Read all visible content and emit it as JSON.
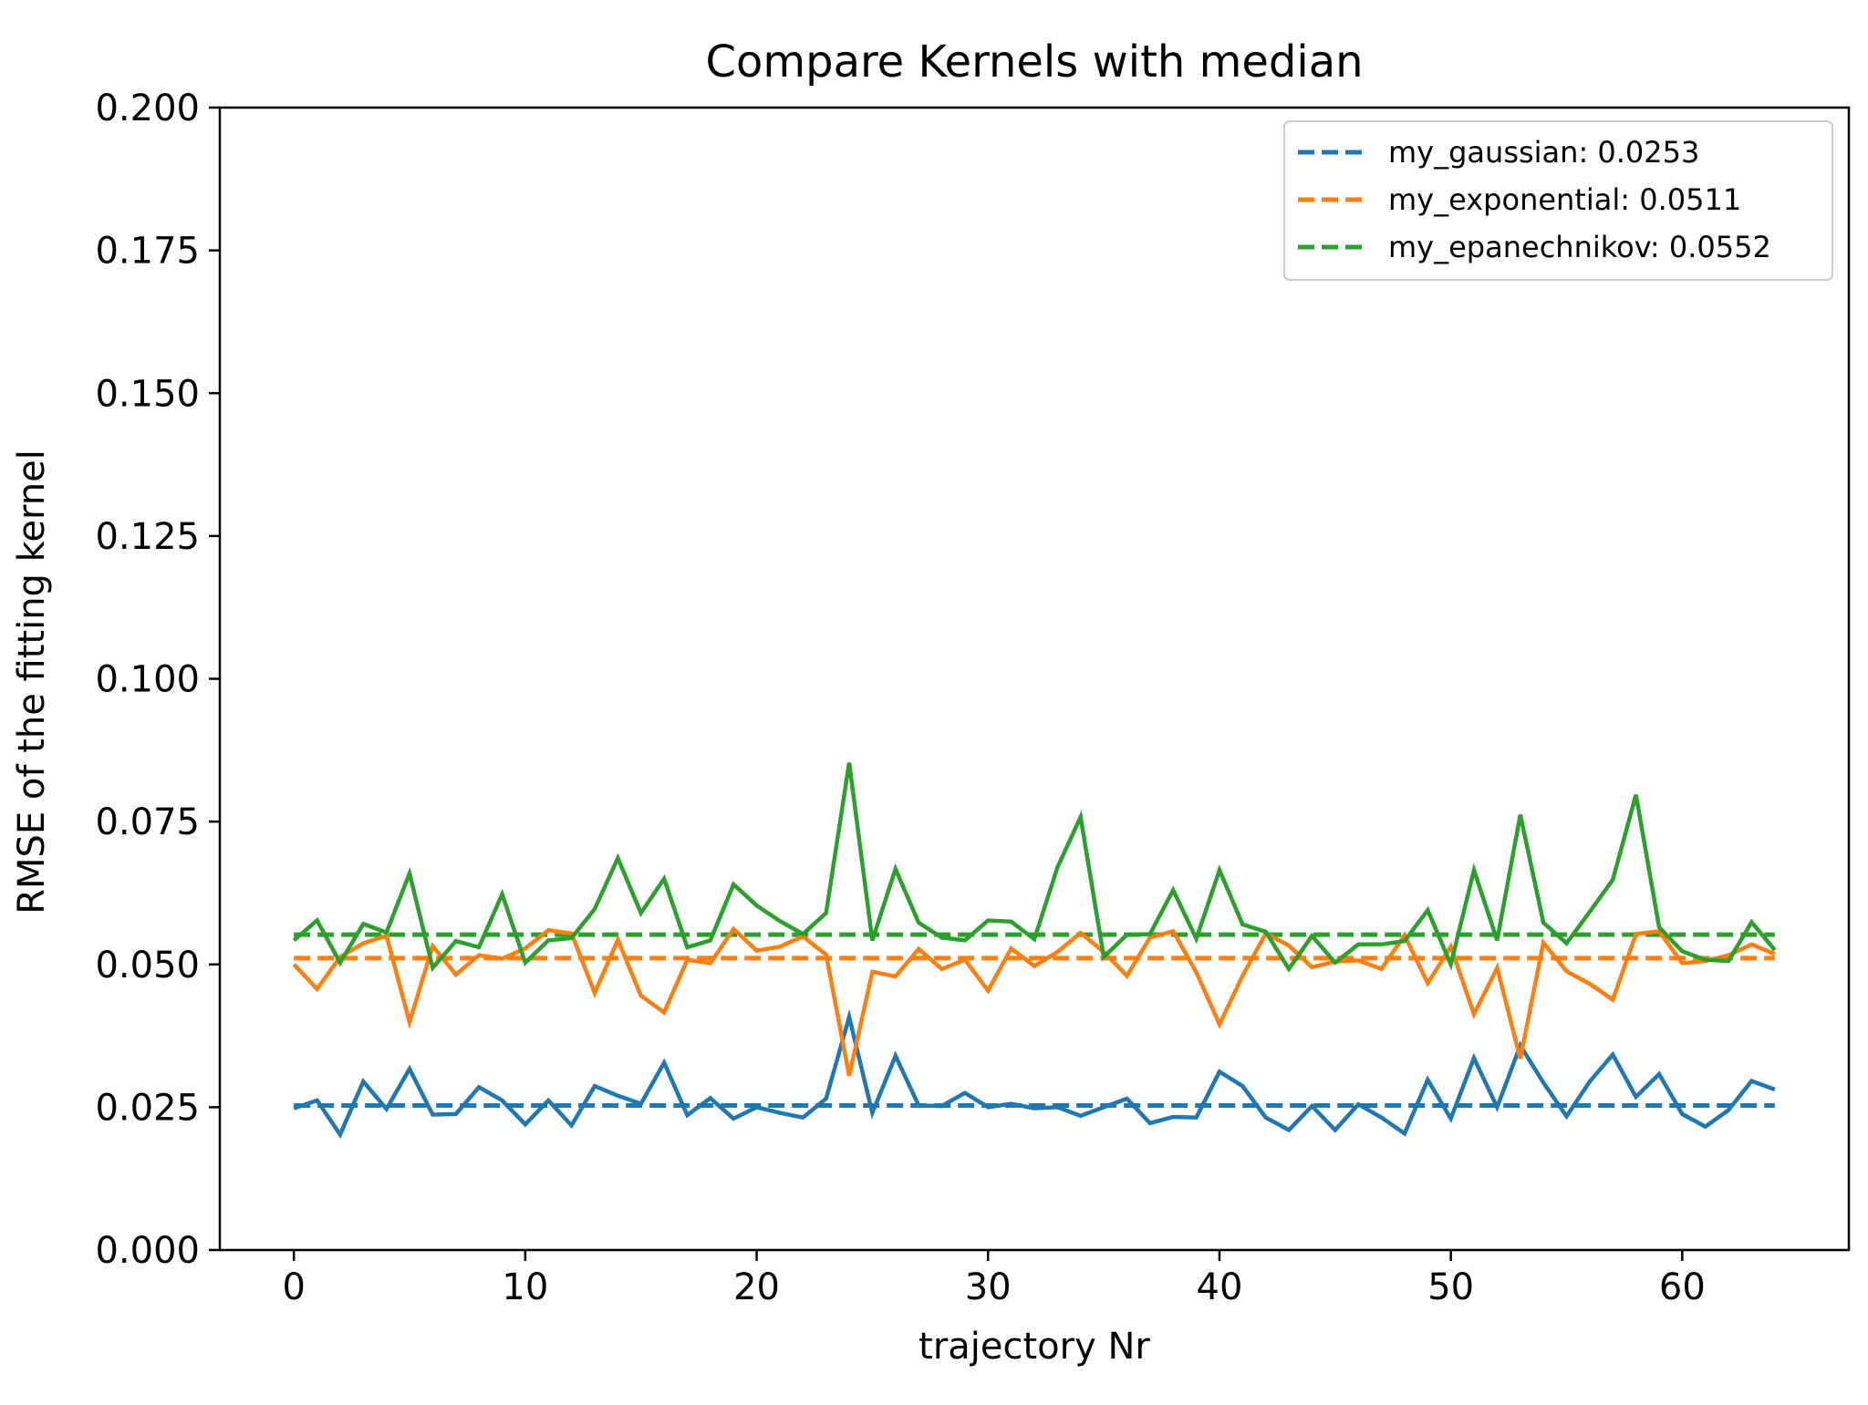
{
  "chart_data": {
    "type": "line",
    "title": "Compare Kernels with median",
    "xlabel": "trajectory Nr",
    "ylabel": "RMSE of the fitting kernel",
    "xlim": [
      -3.2,
      67.2
    ],
    "ylim": [
      0,
      0.2
    ],
    "x_ticks": [
      0,
      10,
      20,
      30,
      40,
      50,
      60
    ],
    "x_tick_labels": [
      "0",
      "10",
      "20",
      "30",
      "40",
      "50",
      "60"
    ],
    "y_ticks": [
      0,
      0.025,
      0.05,
      0.075,
      0.1,
      0.125,
      0.15,
      0.175,
      0.2
    ],
    "y_tick_labels": [
      "0.000",
      "0.025",
      "0.050",
      "0.075",
      "0.100",
      "0.125",
      "0.150",
      "0.175",
      "0.200"
    ],
    "grid": false,
    "legend_position": "top-right",
    "x": [
      0,
      1,
      2,
      3,
      4,
      5,
      6,
      7,
      8,
      9,
      10,
      11,
      12,
      13,
      14,
      15,
      16,
      17,
      18,
      19,
      20,
      21,
      22,
      23,
      24,
      25,
      26,
      27,
      28,
      29,
      30,
      31,
      32,
      33,
      34,
      35,
      36,
      37,
      38,
      39,
      40,
      41,
      42,
      43,
      44,
      45,
      46,
      47,
      48,
      49,
      50,
      51,
      52,
      53,
      54,
      55,
      56,
      57,
      58,
      59,
      60,
      61,
      62,
      63,
      64
    ],
    "series": [
      {
        "color": "#1f77b4",
        "values": [
          0.0248,
          0.0262,
          0.0202,
          0.0295,
          0.0247,
          0.0317,
          0.0237,
          0.0238,
          0.0285,
          0.0262,
          0.022,
          0.0262,
          0.0218,
          0.0287,
          0.027,
          0.0256,
          0.0328,
          0.0236,
          0.0266,
          0.023,
          0.025,
          0.024,
          0.0232,
          0.0265,
          0.0408,
          0.024,
          0.034,
          0.0253,
          0.0252,
          0.0275,
          0.025,
          0.0256,
          0.0248,
          0.025,
          0.0235,
          0.025,
          0.0265,
          0.0222,
          0.0233,
          0.0232,
          0.0312,
          0.0287,
          0.0232,
          0.021,
          0.0252,
          0.021,
          0.0255,
          0.0232,
          0.0204,
          0.0298,
          0.023,
          0.0336,
          0.025,
          0.0358,
          0.0293,
          0.0234,
          0.0295,
          0.0342,
          0.0268,
          0.0308,
          0.0238,
          0.0216,
          0.0245,
          0.0296,
          0.0281
        ]
      },
      {
        "color": "#ff7f0e",
        "values": [
          0.05,
          0.0457,
          0.0513,
          0.0537,
          0.055,
          0.0399,
          0.0532,
          0.0482,
          0.0516,
          0.051,
          0.0528,
          0.056,
          0.0554,
          0.045,
          0.0543,
          0.0445,
          0.0416,
          0.0508,
          0.0502,
          0.0562,
          0.0524,
          0.0531,
          0.0549,
          0.0517,
          0.0305,
          0.0487,
          0.0479,
          0.0527,
          0.0492,
          0.0508,
          0.0454,
          0.0528,
          0.0497,
          0.0522,
          0.0555,
          0.0522,
          0.048,
          0.0547,
          0.0558,
          0.0486,
          0.0395,
          0.048,
          0.0554,
          0.0533,
          0.0495,
          0.0505,
          0.0507,
          0.0492,
          0.0551,
          0.0467,
          0.0531,
          0.0413,
          0.0494,
          0.0335,
          0.0538,
          0.0488,
          0.0466,
          0.0438,
          0.0553,
          0.0558,
          0.0502,
          0.0506,
          0.0516,
          0.0535,
          0.0518
        ]
      },
      {
        "color": "#2ca02c",
        "values": [
          0.0542,
          0.0577,
          0.0503,
          0.0571,
          0.0556,
          0.0659,
          0.0494,
          0.0541,
          0.053,
          0.0623,
          0.0503,
          0.0542,
          0.0546,
          0.0597,
          0.0686,
          0.059,
          0.065,
          0.053,
          0.0542,
          0.064,
          0.0603,
          0.0576,
          0.0553,
          0.059,
          0.0853,
          0.0542,
          0.0667,
          0.0573,
          0.0547,
          0.0542,
          0.0577,
          0.0575,
          0.0544,
          0.067,
          0.0758,
          0.0513,
          0.0552,
          0.0553,
          0.063,
          0.0545,
          0.0665,
          0.057,
          0.0557,
          0.0492,
          0.055,
          0.0503,
          0.0535,
          0.0535,
          0.0541,
          0.0595,
          0.05,
          0.0665,
          0.0542,
          0.0762,
          0.0573,
          0.0537,
          0.0592,
          0.0648,
          0.0797,
          0.0565,
          0.0523,
          0.0508,
          0.0506,
          0.0574,
          0.0525
        ]
      }
    ],
    "medians": [
      {
        "label": "my_gaussian: 0.0253",
        "value": 0.0253,
        "color": "#1f77b4"
      },
      {
        "label": "my_exponential: 0.0511",
        "value": 0.0511,
        "color": "#ff7f0e"
      },
      {
        "label": "my_epanechnikov: 0.0552",
        "value": 0.0552,
        "color": "#2ca02c"
      }
    ]
  }
}
